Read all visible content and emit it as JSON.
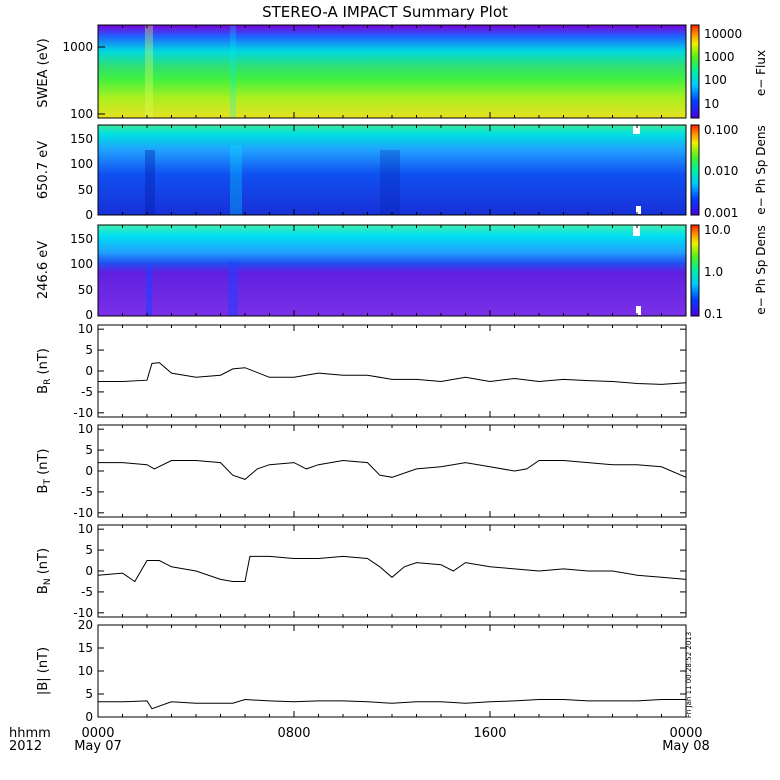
{
  "title": "STEREO-A IMPACT Summary Plot",
  "time_axis": {
    "row1_label": "hhmm",
    "row2_label": "2012",
    "ticks": [
      {
        "t": 0,
        "label": "0000",
        "date": "May 07"
      },
      {
        "t": 8,
        "label": "0800",
        "date": ""
      },
      {
        "t": 16,
        "label": "1600",
        "date": ""
      },
      {
        "t": 24,
        "label": "0000",
        "date": "May 08"
      }
    ],
    "range_hours": [
      0,
      24
    ]
  },
  "footer_stamp": "Fri Jan 11 00:28:52 2013",
  "spectrograms": [
    {
      "id": "swea",
      "ylabel": "SWEA (eV)",
      "yscale": "log",
      "ylim": [
        100,
        2000
      ],
      "yticks": [
        "1000",
        "100"
      ],
      "colorbar_label": "e− Flux",
      "colorbar_scale": "log",
      "colorbar_ticks": [
        "10000",
        "1000",
        "100",
        "10"
      ],
      "description": "energy spectrogram"
    },
    {
      "id": "pad650",
      "ylabel": "650.7 eV",
      "yscale": "linear",
      "ylim": [
        0,
        180
      ],
      "yticks": [
        "150",
        "100",
        "50",
        "0"
      ],
      "colorbar_label": "e− Ph Sp Dens",
      "colorbar_scale": "log",
      "colorbar_ticks": [
        "0.100",
        "0.010",
        "0.001"
      ]
    },
    {
      "id": "pad246",
      "ylabel": "246.6 eV",
      "yscale": "linear",
      "ylim": [
        0,
        180
      ],
      "yticks": [
        "150",
        "100",
        "50",
        "0"
      ],
      "colorbar_label": "e− Ph Sp Dens",
      "colorbar_scale": "log",
      "colorbar_ticks": [
        "10.0",
        "1.0",
        "0.1"
      ]
    }
  ],
  "chart_data": [
    {
      "type": "line",
      "id": "br",
      "ylabel_main": "B",
      "ylabel_sub": "R",
      "ylabel_unit": "(nT)",
      "ylim": [
        -11,
        11
      ],
      "yticks": [
        10,
        5,
        0,
        -5,
        -10
      ],
      "x": [
        0,
        1,
        2,
        2.2,
        2.5,
        3,
        4,
        5,
        5.5,
        6,
        7,
        8,
        9,
        10,
        11,
        12,
        13,
        14,
        15,
        16,
        17,
        18,
        19,
        20,
        21,
        22,
        23,
        24
      ],
      "values": [
        -2.5,
        -2.5,
        -2.2,
        1.8,
        2.0,
        -0.5,
        -1.5,
        -1.0,
        0.5,
        0.8,
        -1.5,
        -1.5,
        -0.5,
        -1.0,
        -1.0,
        -2.0,
        -2.0,
        -2.5,
        -1.5,
        -2.5,
        -1.8,
        -2.5,
        -2.0,
        -2.3,
        -2.5,
        -3.0,
        -3.2,
        -2.8
      ]
    },
    {
      "type": "line",
      "id": "bt",
      "ylabel_main": "B",
      "ylabel_sub": "T",
      "ylabel_unit": "(nT)",
      "ylim": [
        -11,
        11
      ],
      "yticks": [
        10,
        5,
        0,
        -5,
        -10
      ],
      "x": [
        0,
        1,
        2,
        2.3,
        3,
        4,
        5,
        5.5,
        6,
        6.5,
        7,
        8,
        8.5,
        9,
        10,
        11,
        11.5,
        12,
        13,
        14,
        15,
        16,
        17,
        17.5,
        18,
        19,
        20,
        21,
        22,
        23,
        24
      ],
      "values": [
        2.0,
        2.0,
        1.5,
        0.5,
        2.5,
        2.5,
        2.0,
        -1.0,
        -2.0,
        0.5,
        1.5,
        2.0,
        0.5,
        1.5,
        2.5,
        2.0,
        -1.0,
        -1.5,
        0.5,
        1.0,
        2.0,
        1.0,
        0.0,
        0.5,
        2.5,
        2.5,
        2.0,
        1.5,
        1.5,
        1.0,
        -1.5
      ]
    },
    {
      "type": "line",
      "id": "bn",
      "ylabel_main": "B",
      "ylabel_sub": "N",
      "ylabel_unit": "(nT)",
      "ylim": [
        -11,
        11
      ],
      "yticks": [
        10,
        5,
        0,
        -5,
        -10
      ],
      "x": [
        0,
        1,
        1.5,
        2,
        2.5,
        3,
        4,
        5,
        5.5,
        6,
        6.2,
        7,
        8,
        9,
        10,
        11,
        11.5,
        12,
        12.5,
        13,
        14,
        14.5,
        15,
        16,
        17,
        18,
        19,
        20,
        21,
        22,
        23,
        24
      ],
      "values": [
        -1.0,
        -0.5,
        -2.5,
        2.5,
        2.5,
        1.0,
        0.0,
        -2.0,
        -2.5,
        -2.5,
        3.5,
        3.5,
        3.0,
        3.0,
        3.5,
        3.0,
        1.0,
        -1.5,
        1.0,
        2.0,
        1.5,
        0.0,
        2.0,
        1.0,
        0.5,
        0.0,
        0.5,
        0.0,
        0.0,
        -1.0,
        -1.5,
        -2.0
      ]
    },
    {
      "type": "line",
      "id": "bmag",
      "ylabel_main": "|B| (nT)",
      "ylim": [
        0,
        20
      ],
      "yticks": [
        20,
        15,
        10,
        5,
        0
      ],
      "x": [
        0,
        1,
        2,
        2.2,
        3,
        4,
        5,
        5.5,
        6,
        7,
        8,
        9,
        10,
        11,
        12,
        13,
        14,
        15,
        16,
        17,
        18,
        19,
        20,
        21,
        22,
        23,
        24
      ],
      "values": [
        3.3,
        3.3,
        3.5,
        1.8,
        3.3,
        3.0,
        3.0,
        3.0,
        3.8,
        3.5,
        3.3,
        3.5,
        3.5,
        3.3,
        3.0,
        3.3,
        3.3,
        3.0,
        3.3,
        3.5,
        3.8,
        3.8,
        3.5,
        3.5,
        3.5,
        3.8,
        3.8
      ]
    }
  ]
}
